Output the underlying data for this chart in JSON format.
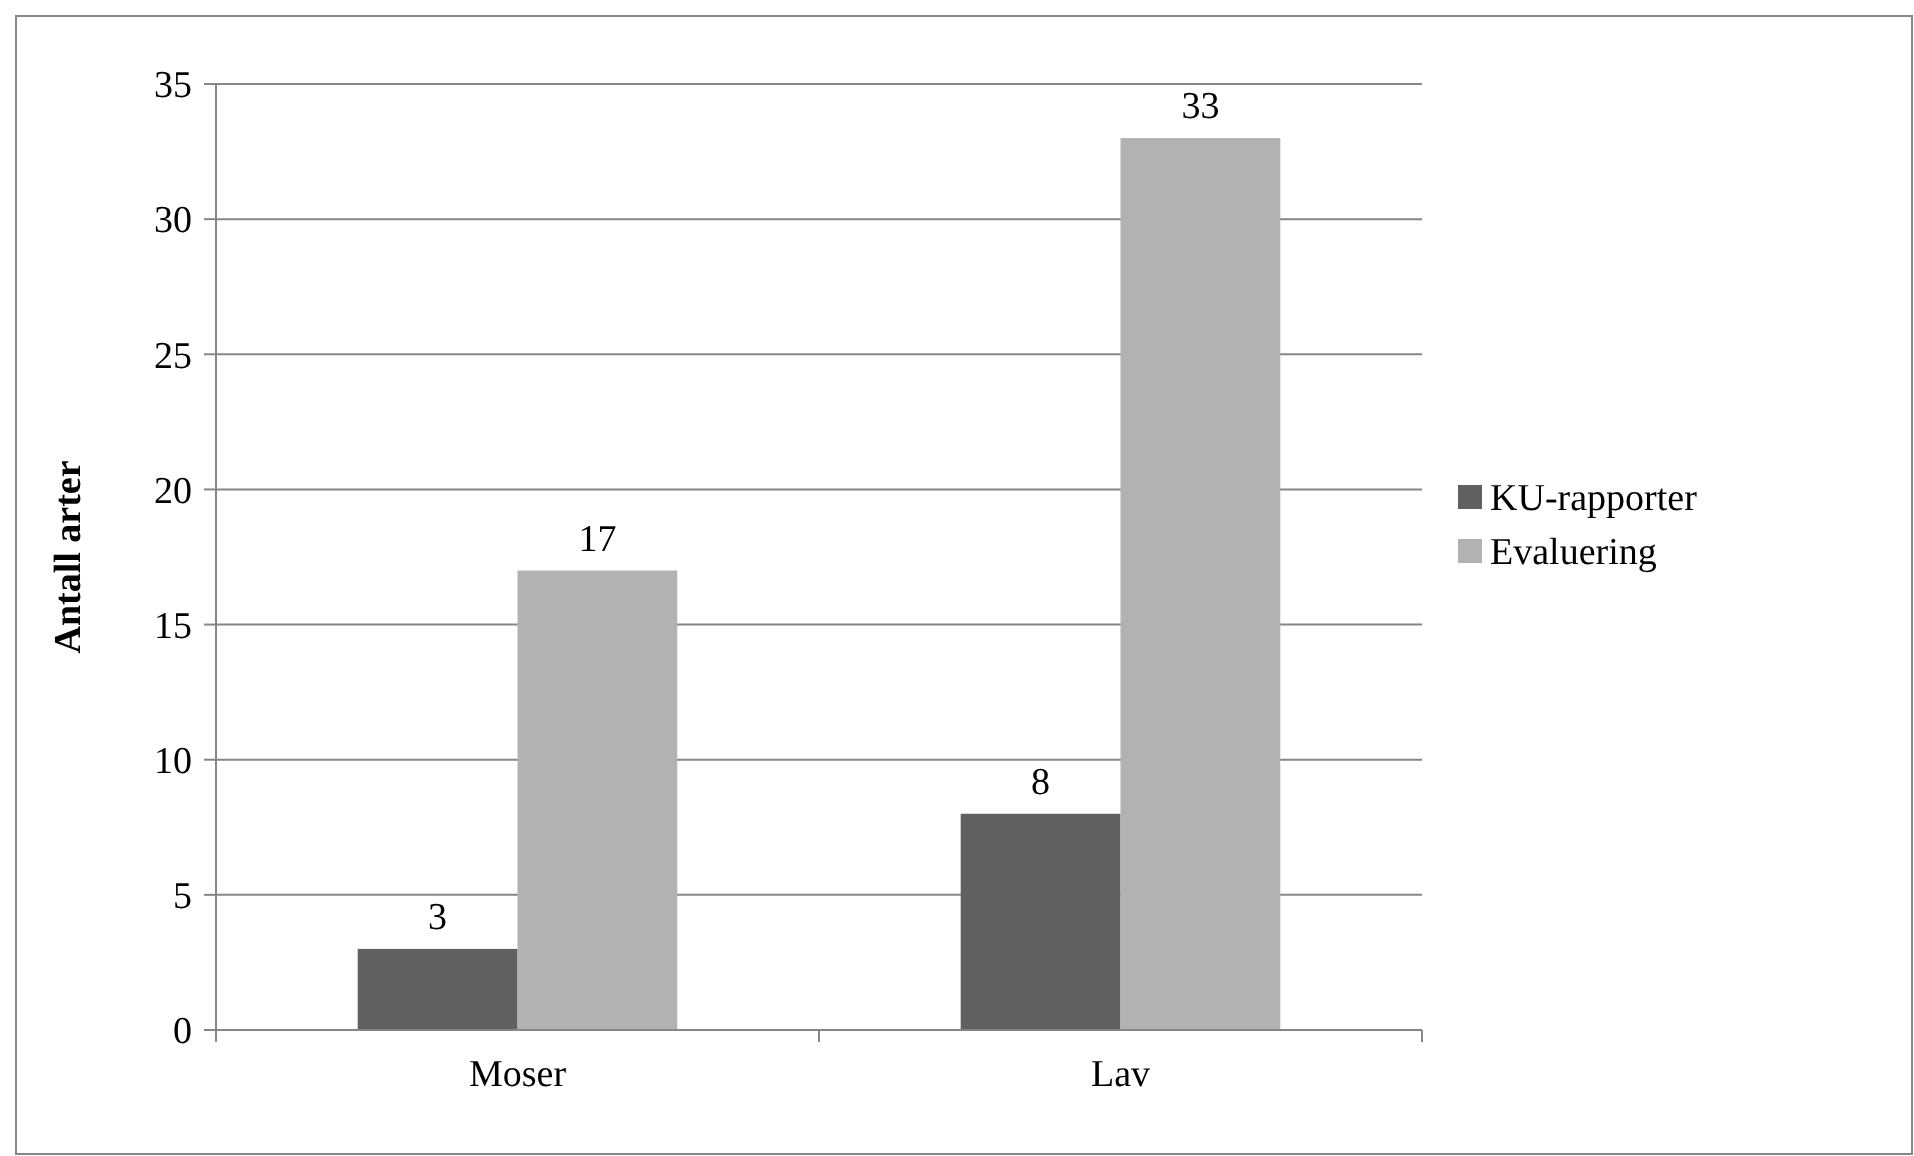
{
  "chart_data": {
    "type": "bar",
    "ylabel": "Antall arter",
    "categories": [
      "Moser",
      "Lav"
    ],
    "series": [
      {
        "name": "KU-rapporter",
        "color": "#606060",
        "values": [
          3,
          8
        ]
      },
      {
        "name": "Evaluering",
        "color": "#b2b2b2",
        "values": [
          17,
          33
        ]
      }
    ],
    "ylim": [
      0,
      35
    ],
    "yticks": [
      0,
      5,
      10,
      15,
      20,
      25,
      30,
      35
    ],
    "grid": "y",
    "legend": "right",
    "data_labels": true
  }
}
